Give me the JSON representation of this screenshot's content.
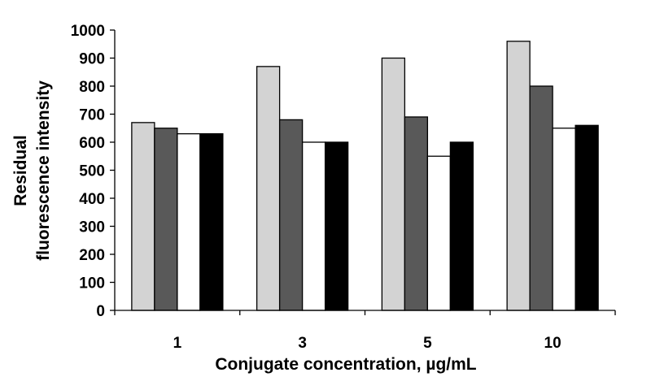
{
  "chart_data": {
    "type": "bar",
    "title": "",
    "xlabel": "Conjugate concentration, µg/mL",
    "ylabel_lines": [
      "Residual",
      "fluorescence intensity"
    ],
    "categories": [
      "1",
      "3",
      "5",
      "10"
    ],
    "yticks": [
      "0",
      "100",
      "200",
      "300",
      "400",
      "500",
      "600",
      "700",
      "800",
      "900",
      "1000"
    ],
    "ylim": [
      0,
      1000
    ],
    "grid": false,
    "legend": "none",
    "series": [
      {
        "values": [
          670,
          870,
          900,
          960
        ],
        "color": "#d3d3d3"
      },
      {
        "values": [
          650,
          680,
          690,
          800
        ],
        "color": "#595959"
      },
      {
        "values": [
          630,
          600,
          550,
          650
        ],
        "color": "#ffffff"
      },
      {
        "values": [
          630,
          600,
          600,
          660
        ],
        "color": "#000000"
      }
    ]
  }
}
